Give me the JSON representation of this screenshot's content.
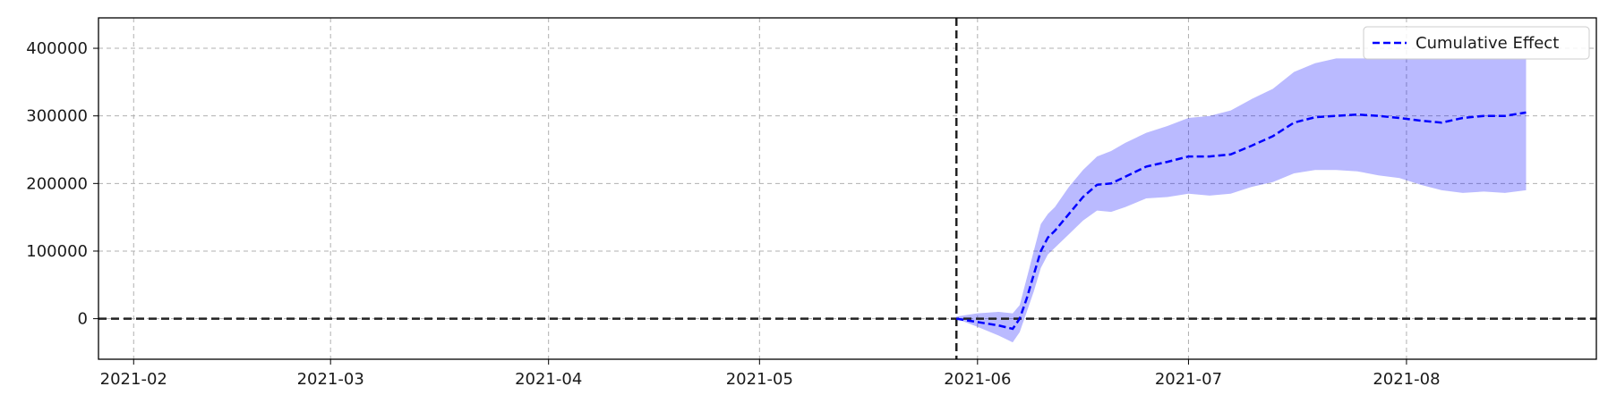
{
  "chart_data": {
    "type": "line",
    "title": "",
    "xlabel": "",
    "ylabel": "",
    "x_axis_type": "date",
    "xlim": [
      "2021-01-27",
      "2021-08-28"
    ],
    "ylim": [
      -60000,
      445000
    ],
    "grid": true,
    "legend_position": "top-right",
    "x_ticks": [
      {
        "value": "2021-02-01",
        "label": "2021-02"
      },
      {
        "value": "2021-03-01",
        "label": "2021-03"
      },
      {
        "value": "2021-04-01",
        "label": "2021-04"
      },
      {
        "value": "2021-05-01",
        "label": "2021-05"
      },
      {
        "value": "2021-06-01",
        "label": "2021-06"
      },
      {
        "value": "2021-07-01",
        "label": "2021-07"
      },
      {
        "value": "2021-08-01",
        "label": "2021-08"
      }
    ],
    "y_ticks": [
      {
        "value": 0,
        "label": "0"
      },
      {
        "value": 100000,
        "label": "100000"
      },
      {
        "value": 200000,
        "label": "200000"
      },
      {
        "value": 300000,
        "label": "300000"
      },
      {
        "value": 400000,
        "label": "400000"
      }
    ],
    "reference_lines": {
      "vertical_date": "2021-05-29",
      "horizontal_value": 0
    },
    "series": [
      {
        "name": "Cumulative Effect",
        "color": "#0000ff",
        "line_style": "dashed",
        "points": [
          {
            "x": "2021-05-29",
            "y": 0
          },
          {
            "x": "2021-06-01",
            "y": -5000
          },
          {
            "x": "2021-06-04",
            "y": -10000
          },
          {
            "x": "2021-06-06",
            "y": -15000
          },
          {
            "x": "2021-06-07",
            "y": 0
          },
          {
            "x": "2021-06-08",
            "y": 30000
          },
          {
            "x": "2021-06-09",
            "y": 65000
          },
          {
            "x": "2021-06-10",
            "y": 100000
          },
          {
            "x": "2021-06-11",
            "y": 120000
          },
          {
            "x": "2021-06-12",
            "y": 130000
          },
          {
            "x": "2021-06-14",
            "y": 155000
          },
          {
            "x": "2021-06-16",
            "y": 180000
          },
          {
            "x": "2021-06-18",
            "y": 198000
          },
          {
            "x": "2021-06-20",
            "y": 200000
          },
          {
            "x": "2021-06-22",
            "y": 210000
          },
          {
            "x": "2021-06-25",
            "y": 225000
          },
          {
            "x": "2021-06-28",
            "y": 232000
          },
          {
            "x": "2021-07-01",
            "y": 240000
          },
          {
            "x": "2021-07-04",
            "y": 240000
          },
          {
            "x": "2021-07-07",
            "y": 243000
          },
          {
            "x": "2021-07-10",
            "y": 256000
          },
          {
            "x": "2021-07-13",
            "y": 270000
          },
          {
            "x": "2021-07-16",
            "y": 290000
          },
          {
            "x": "2021-07-19",
            "y": 298000
          },
          {
            "x": "2021-07-22",
            "y": 300000
          },
          {
            "x": "2021-07-25",
            "y": 302000
          },
          {
            "x": "2021-07-28",
            "y": 300000
          },
          {
            "x": "2021-07-31",
            "y": 297000
          },
          {
            "x": "2021-08-03",
            "y": 293000
          },
          {
            "x": "2021-08-06",
            "y": 290000
          },
          {
            "x": "2021-08-09",
            "y": 297000
          },
          {
            "x": "2021-08-12",
            "y": 300000
          },
          {
            "x": "2021-08-15",
            "y": 300000
          },
          {
            "x": "2021-08-18",
            "y": 305000
          }
        ]
      }
    ],
    "confidence_band": {
      "color": "#0000ff",
      "opacity": 0.27,
      "points": [
        {
          "x": "2021-05-29",
          "lower": 0,
          "upper": 3000
        },
        {
          "x": "2021-06-01",
          "lower": -12000,
          "upper": 8000
        },
        {
          "x": "2021-06-04",
          "lower": -25000,
          "upper": 10000
        },
        {
          "x": "2021-06-06",
          "lower": -35000,
          "upper": 8000
        },
        {
          "x": "2021-06-07",
          "lower": -20000,
          "upper": 20000
        },
        {
          "x": "2021-06-08",
          "lower": 10000,
          "upper": 60000
        },
        {
          "x": "2021-06-09",
          "lower": 40000,
          "upper": 100000
        },
        {
          "x": "2021-06-10",
          "lower": 75000,
          "upper": 140000
        },
        {
          "x": "2021-06-11",
          "lower": 95000,
          "upper": 155000
        },
        {
          "x": "2021-06-12",
          "lower": 105000,
          "upper": 165000
        },
        {
          "x": "2021-06-14",
          "lower": 125000,
          "upper": 195000
        },
        {
          "x": "2021-06-16",
          "lower": 145000,
          "upper": 220000
        },
        {
          "x": "2021-06-18",
          "lower": 160000,
          "upper": 240000
        },
        {
          "x": "2021-06-20",
          "lower": 158000,
          "upper": 248000
        },
        {
          "x": "2021-06-22",
          "lower": 165000,
          "upper": 260000
        },
        {
          "x": "2021-06-25",
          "lower": 178000,
          "upper": 275000
        },
        {
          "x": "2021-06-28",
          "lower": 180000,
          "upper": 285000
        },
        {
          "x": "2021-07-01",
          "lower": 185000,
          "upper": 297000
        },
        {
          "x": "2021-07-04",
          "lower": 182000,
          "upper": 300000
        },
        {
          "x": "2021-07-07",
          "lower": 185000,
          "upper": 308000
        },
        {
          "x": "2021-07-10",
          "lower": 195000,
          "upper": 325000
        },
        {
          "x": "2021-07-13",
          "lower": 202000,
          "upper": 340000
        },
        {
          "x": "2021-07-16",
          "lower": 215000,
          "upper": 365000
        },
        {
          "x": "2021-07-19",
          "lower": 220000,
          "upper": 378000
        },
        {
          "x": "2021-07-22",
          "lower": 220000,
          "upper": 385000
        },
        {
          "x": "2021-07-25",
          "lower": 218000,
          "upper": 385000
        },
        {
          "x": "2021-07-28",
          "lower": 212000,
          "upper": 385000
        },
        {
          "x": "2021-07-31",
          "lower": 208000,
          "upper": 385000
        },
        {
          "x": "2021-08-03",
          "lower": 198000,
          "upper": 385000
        },
        {
          "x": "2021-08-06",
          "lower": 190000,
          "upper": 385000
        },
        {
          "x": "2021-08-09",
          "lower": 186000,
          "upper": 385000
        },
        {
          "x": "2021-08-12",
          "lower": 188000,
          "upper": 385000
        },
        {
          "x": "2021-08-15",
          "lower": 186000,
          "upper": 385000
        },
        {
          "x": "2021-08-18",
          "lower": 190000,
          "upper": 385000
        }
      ]
    }
  }
}
